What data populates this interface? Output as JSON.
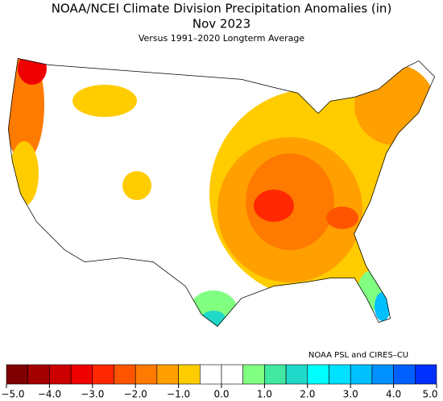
{
  "header": {
    "title": "NOAA/NCEI Climate Division Precipitation Anomalies (in)",
    "date": "Nov 2023",
    "subtitle": "Versus 1991–2020 Longterm Average"
  },
  "credit": "NOAA PSL and CIRES–CU",
  "colorbar": {
    "bins": [
      -5,
      -4.5,
      -4,
      -3.5,
      -3,
      -2.5,
      -2,
      -1.5,
      -1,
      -0.5,
      0,
      0.5,
      1,
      1.5,
      2,
      2.5,
      3,
      3.5,
      4,
      4.5,
      5
    ],
    "colors": [
      "#7f0000",
      "#a50000",
      "#cc0000",
      "#ee0000",
      "#ff2800",
      "#ff5500",
      "#ff7a00",
      "#ffa000",
      "#ffcc00",
      "#ffffff",
      "#ffffff",
      "#80ff80",
      "#40e8a0",
      "#20d8c8",
      "#00ffff",
      "#00e0ff",
      "#00c0ff",
      "#0090ff",
      "#0060ff",
      "#0030ff"
    ],
    "ticks": [
      {
        "value": -5,
        "label": "−5.0"
      },
      {
        "value": -4,
        "label": "−4.0"
      },
      {
        "value": -3,
        "label": "−3.0"
      },
      {
        "value": -2,
        "label": "−2.0"
      },
      {
        "value": -1,
        "label": "−1.0"
      },
      {
        "value": 0,
        "label": "0.0"
      },
      {
        "value": 1,
        "label": "1.0"
      },
      {
        "value": 2,
        "label": "2.0"
      },
      {
        "value": 3,
        "label": "3.0"
      },
      {
        "value": 4,
        "label": "4.0"
      },
      {
        "value": 5,
        "label": "5.0"
      }
    ]
  }
}
